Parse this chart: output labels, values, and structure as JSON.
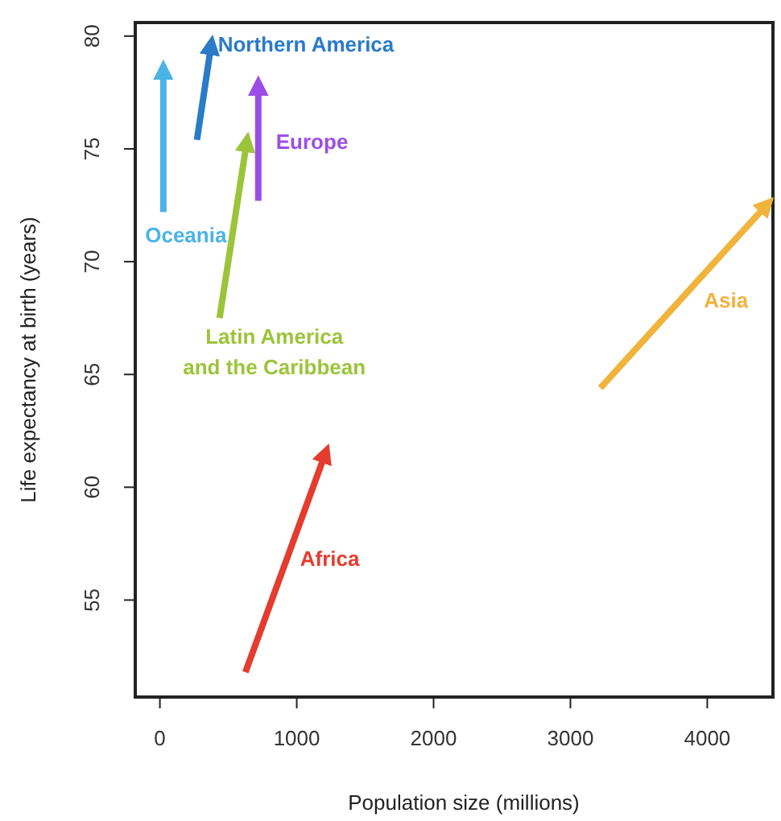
{
  "chart_data": {
    "type": "line",
    "xlabel": "Population size (millions)",
    "ylabel": "Life expectancy at birth (years)",
    "xlim": [
      -180,
      4480
    ],
    "ylim": [
      50.7,
      80.6
    ],
    "xticks": [
      0,
      1000,
      2000,
      3000,
      4000
    ],
    "yticks": [
      55,
      60,
      65,
      70,
      75,
      80
    ],
    "grid": false,
    "series": [
      {
        "name": "Oceania",
        "color": "#4ab4e6",
        "x": [
          25,
          25
        ],
        "values": [
          72.2,
          78.6
        ]
      },
      {
        "name": "Northern America",
        "color": "#2a7bc8",
        "x": [
          271,
          377
        ],
        "values": [
          75.4,
          79.7
        ]
      },
      {
        "name": "Europe",
        "color": "#9b4de8",
        "x": [
          719,
          719
        ],
        "values": [
          72.7,
          77.9
        ]
      },
      {
        "name": "Latin America and the Caribbean",
        "color": "#9cc43a",
        "x": [
          436,
          637
        ],
        "values": [
          67.5,
          75.4
        ]
      },
      {
        "name": "Africa",
        "color": "#e43c2e",
        "x": [
          625,
          1215
        ],
        "values": [
          51.8,
          61.6
        ]
      },
      {
        "name": "Asia",
        "color": "#f0b43c",
        "x": [
          3219,
          4446
        ],
        "values": [
          64.4,
          72.6
        ]
      }
    ]
  }
}
